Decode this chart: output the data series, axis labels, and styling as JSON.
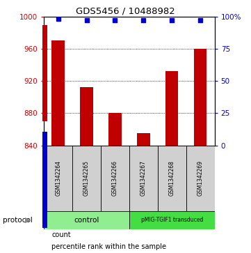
{
  "title": "GDS5456 / 10488982",
  "samples": [
    "GSM1342264",
    "GSM1342265",
    "GSM1342266",
    "GSM1342267",
    "GSM1342268",
    "GSM1342269"
  ],
  "counts": [
    970,
    912,
    880,
    855,
    932,
    960
  ],
  "percentiles": [
    98,
    97,
    97,
    97,
    97,
    97
  ],
  "ylim_left": [
    840,
    1000
  ],
  "ylim_right": [
    0,
    100
  ],
  "yticks_left": [
    840,
    880,
    920,
    960,
    1000
  ],
  "yticks_right": [
    0,
    25,
    50,
    75,
    100
  ],
  "ytick_labels_right": [
    "0",
    "25",
    "50",
    "75",
    "100%"
  ],
  "bar_color": "#c00000",
  "dot_color": "#0000cc",
  "grid_color": "#000000",
  "bar_bottom": 840,
  "background_color": "#ffffff",
  "plot_bg": "#ffffff",
  "tick_label_color_left": "#cc0000",
  "tick_label_color_right": "#0000cc",
  "sample_box_color": "#d0d0d0",
  "control_color": "#90ee90",
  "pmig_color": "#44dd44",
  "control_label": "control",
  "pmig_label": "pMIG-TGIF1 transduced",
  "protocol_label": "protocol",
  "legend_count_label": "count",
  "legend_percentile_label": "percentile rank within the sample"
}
